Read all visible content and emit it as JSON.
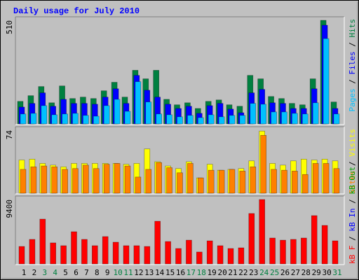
{
  "chart_data": [
    {
      "type": "bar",
      "title": "Daily usage for July 2010",
      "ylim": [
        0,
        510
      ],
      "yticks": [
        510
      ],
      "legend_separator": " / ",
      "series": [
        {
          "name": "Hits",
          "color": "#008040",
          "values": [
            111,
            139,
            184,
            104,
            187,
            125,
            132,
            125,
            163,
            205,
            132,
            264,
            222,
            264,
            121,
            94,
            104,
            76,
            111,
            118,
            94,
            87,
            239,
            222,
            135,
            125,
            101,
            94,
            222,
            510,
            108
          ]
        },
        {
          "name": "Files",
          "color": "#0000ff",
          "values": [
            83,
            101,
            153,
            87,
            121,
            101,
            101,
            97,
            132,
            173,
            101,
            239,
            166,
            132,
            97,
            76,
            87,
            52,
            90,
            101,
            73,
            55,
            153,
            170,
            104,
            101,
            76,
            76,
            173,
            486,
            76
          ]
        },
        {
          "name": "Pages",
          "color": "#00c0ff",
          "values": [
            49,
            52,
            90,
            45,
            49,
            52,
            42,
            38,
            90,
            121,
            62,
            208,
            108,
            49,
            45,
            35,
            42,
            31,
            45,
            35,
            42,
            42,
            101,
            97,
            59,
            59,
            52,
            49,
            104,
            420,
            49
          ]
        }
      ]
    },
    {
      "type": "bar",
      "ylim": [
        0,
        74
      ],
      "yticks": [
        74
      ],
      "series": [
        {
          "name": "Visits",
          "color": "#ffff00",
          "values": [
            39,
            40,
            35,
            33,
            31,
            35,
            35,
            35,
            35,
            35,
            34,
            35,
            52,
            37,
            32,
            29,
            37,
            18,
            34,
            27,
            28,
            29,
            38,
            73,
            35,
            33,
            38,
            40,
            39,
            40,
            38
          ]
        },
        {
          "name": "Sites",
          "color": "#ff8000",
          "values": [
            28,
            31,
            32,
            31,
            28,
            29,
            33,
            29,
            34,
            35,
            32,
            19,
            28,
            36,
            30,
            24,
            35,
            18,
            27,
            27,
            28,
            26,
            31,
            68,
            28,
            27,
            26,
            22,
            35,
            35,
            29
          ]
        }
      ]
    },
    {
      "type": "bar",
      "ylim": [
        0,
        9400
      ],
      "yticks": [
        9400
      ],
      "categories": [
        "1",
        "2",
        "3",
        "4",
        "5",
        "6",
        "7",
        "8",
        "9",
        "10",
        "11",
        "12",
        "13",
        "14",
        "15",
        "16",
        "17",
        "18",
        "19",
        "20",
        "21",
        "22",
        "23",
        "24",
        "25",
        "26",
        "27",
        "28",
        "29",
        "30",
        "31"
      ],
      "category_colors": [
        "#000000",
        "#000000",
        "#008040",
        "#008040",
        "#000000",
        "#000000",
        "#000000",
        "#000000",
        "#000000",
        "#008040",
        "#008040",
        "#000000",
        "#000000",
        "#000000",
        "#000000",
        "#000000",
        "#008040",
        "#008040",
        "#000000",
        "#000000",
        "#000000",
        "#000000",
        "#000000",
        "#008040",
        "#008040",
        "#000000",
        "#000000",
        "#000000",
        "#000000",
        "#000000",
        "#008040"
      ],
      "series": [
        {
          "name": "kB F",
          "color": "#ff0000",
          "values": [
            2550,
            3580,
            6540,
            3070,
            2660,
            4700,
            3580,
            2660,
            3990,
            3170,
            2660,
            2660,
            2550,
            6230,
            3270,
            2250,
            3470,
            1740,
            3370,
            2660,
            2250,
            2350,
            7360,
            9400,
            3780,
            3470,
            3580,
            3780,
            7050,
            5620,
            3370
          ]
        },
        {
          "name": "kB In",
          "color": "#0000ff"
        },
        {
          "name": "kB Out",
          "color": "#00a000"
        }
      ]
    }
  ]
}
